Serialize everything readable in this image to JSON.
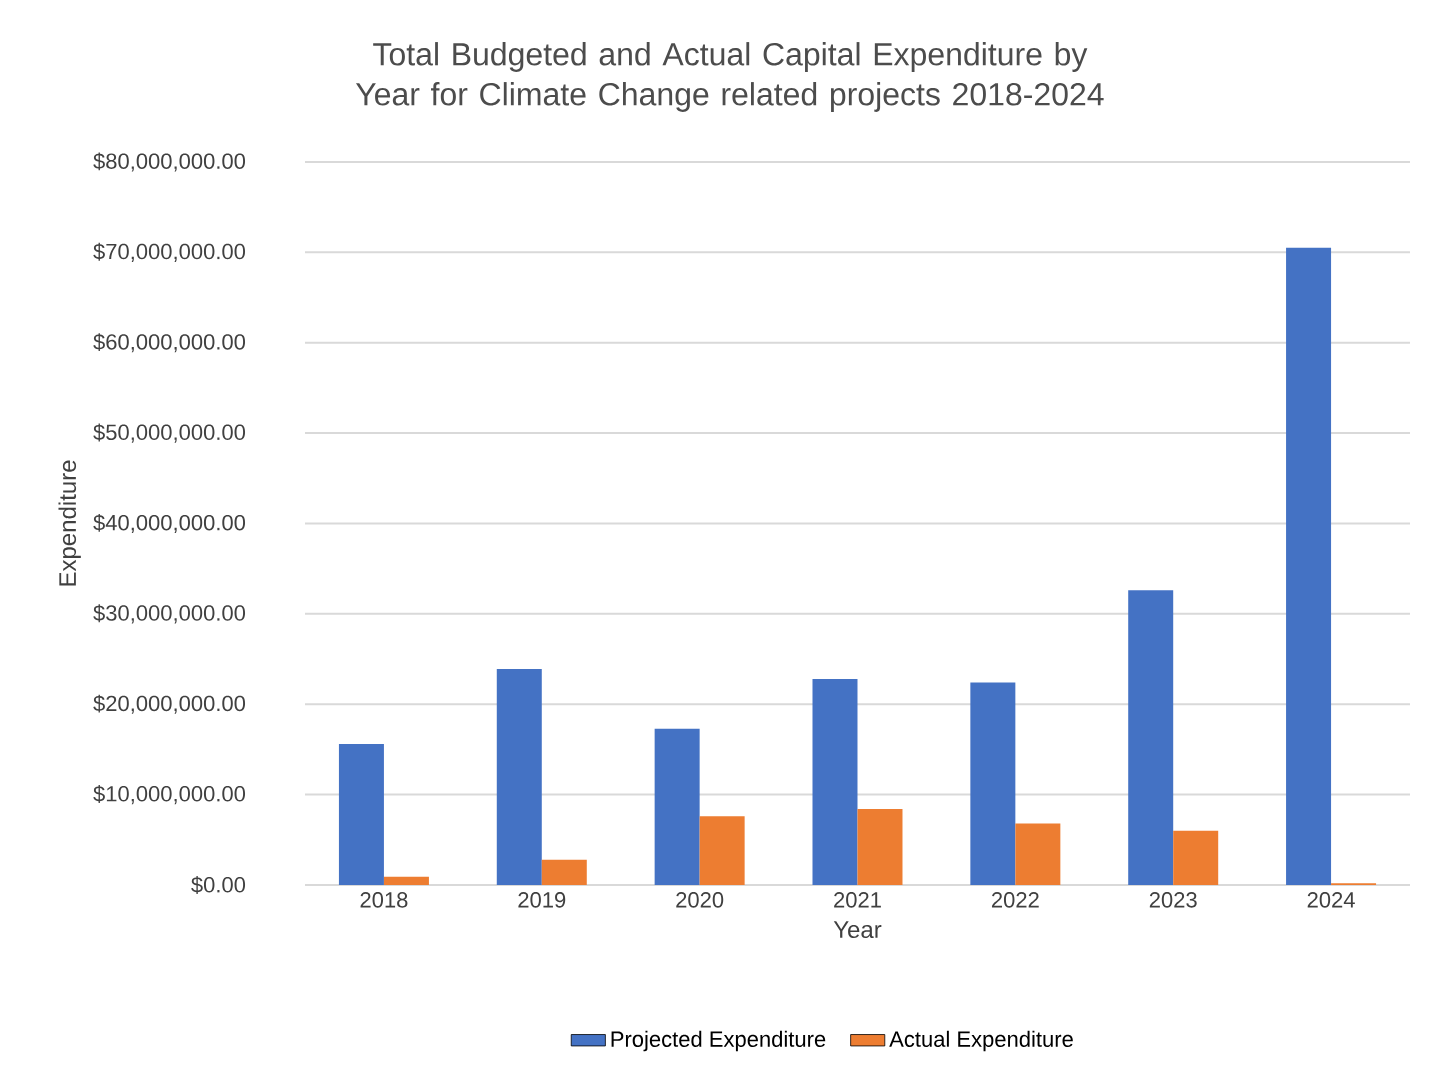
{
  "chart_data": {
    "type": "bar",
    "title": "Total Budgeted and Actual Capital Expenditure by Year for Climate Change related projects 2018-2024",
    "xlabel": "Year",
    "ylabel": "Expenditure",
    "categories": [
      "2018",
      "2019",
      "2020",
      "2021",
      "2022",
      "2023",
      "2024"
    ],
    "series": [
      {
        "name": "Projected Expenditure",
        "color": "#4472c4",
        "values": [
          15600000,
          23900000,
          17300000,
          22800000,
          22400000,
          32600000,
          70500000
        ]
      },
      {
        "name": "Actual Expenditure",
        "color": "#ed7d31",
        "values": [
          900000,
          2800000,
          7600000,
          8400000,
          6800000,
          6000000,
          200000
        ]
      }
    ],
    "ylim": [
      0,
      80000000
    ],
    "yticks": [
      {
        "value": 0,
        "label": "$0.00"
      },
      {
        "value": 10000000,
        "label": "$10,000,000.00"
      },
      {
        "value": 20000000,
        "label": "$20,000,000.00"
      },
      {
        "value": 30000000,
        "label": "$30,000,000.00"
      },
      {
        "value": 40000000,
        "label": "$40,000,000.00"
      },
      {
        "value": 50000000,
        "label": "$50,000,000.00"
      },
      {
        "value": 60000000,
        "label": "$60,000,000.00"
      },
      {
        "value": 70000000,
        "label": "$70,000,000.00"
      },
      {
        "value": 80000000,
        "label": "$80,000,000.00"
      }
    ],
    "grid": "y",
    "legend": "bottom"
  }
}
